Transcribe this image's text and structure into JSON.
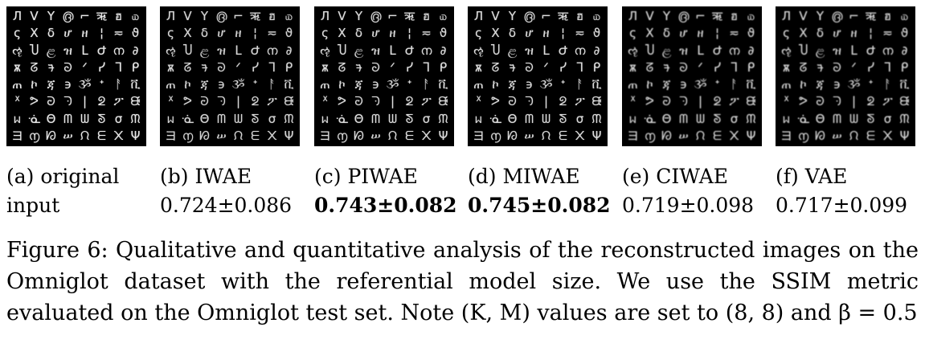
{
  "panels": [
    {
      "label": "(a) original",
      "value": "input",
      "bold": false
    },
    {
      "label": "(b) IWAE",
      "value": "0.724±0.086",
      "bold": false
    },
    {
      "label": "(c) PIWAE",
      "value": "0.743±0.082",
      "bold": true
    },
    {
      "label": "(d) MIWAE",
      "value": "0.745±0.082",
      "bold": true
    },
    {
      "label": "(e) CIWAE",
      "value": "0.719±0.098",
      "bold": false
    },
    {
      "label": "(f) VAE",
      "value": "0.717±0.099",
      "bold": false
    }
  ],
  "caption": {
    "text": "Figure 6: Qualitative and quantitative analysis of the reconstructed images on the Omniglot dataset with the referential model size. We use the SSIM metric evaluated on the Omniglot test set. Note (K, M) values are set to (8, 8) and β = 0.5"
  }
}
